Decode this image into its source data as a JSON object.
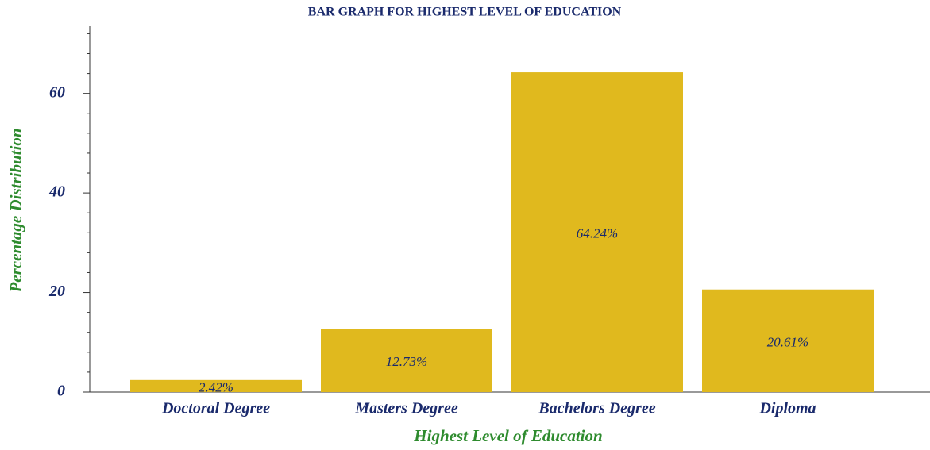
{
  "chart_data": {
    "type": "bar",
    "title": "BAR GRAPH FOR HIGHEST LEVEL OF EDUCATION",
    "x_label": "Highest Level of Education",
    "y_label": "Percentage Distribution",
    "categories": [
      "Doctoral Degree",
      "Masters Degree",
      "Bachelors Degree",
      "Diploma"
    ],
    "values": [
      2.42,
      12.73,
      64.24,
      20.61
    ],
    "value_labels": [
      "2.42%",
      "12.73%",
      "64.24%",
      "20.61%"
    ],
    "color": "#e0b91e",
    "ylim": [
      0,
      73.5
    ],
    "yticks": [
      0,
      20,
      40,
      60
    ],
    "minor_yticks": [
      4,
      8,
      12,
      16,
      24,
      28,
      32,
      36,
      44,
      48,
      52,
      56,
      64,
      68,
      72
    ]
  }
}
